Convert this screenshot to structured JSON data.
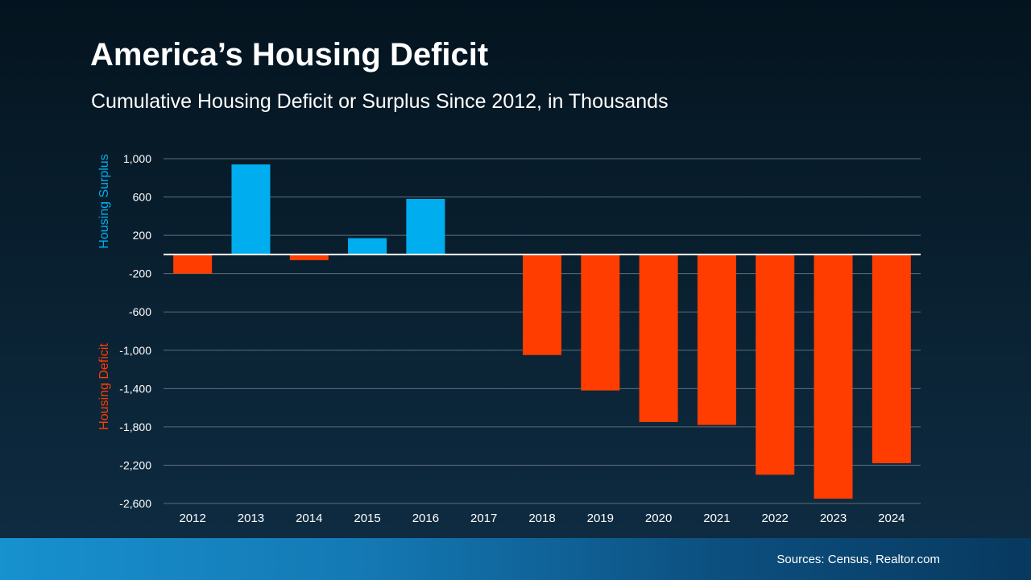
{
  "title": "America’s Housing Deficit",
  "subtitle": "Cumulative Housing Deficit or Surplus Since 2012, in Thousands",
  "source": "Sources: Census, Realtor.com",
  "colors": {
    "surplus": "#00aeef",
    "deficit": "#ff3d00",
    "grid": "#5d6e7a",
    "text": "#ffffff"
  },
  "chart_data": {
    "type": "bar",
    "categories": [
      "2012",
      "2013",
      "2014",
      "2015",
      "2016",
      "2017",
      "2018",
      "2019",
      "2020",
      "2021",
      "2022",
      "2023",
      "2024"
    ],
    "values": [
      -200,
      940,
      -60,
      170,
      580,
      0,
      -1050,
      -1420,
      -1750,
      -1780,
      -2300,
      -2550,
      -2180
    ],
    "ylim": [
      -2600,
      1000
    ],
    "yticks": [
      1000,
      600,
      200,
      -200,
      -600,
      -1000,
      -1400,
      -1800,
      -2200,
      -2600
    ],
    "ytick_labels": [
      "1,000",
      "600",
      "200",
      "-200",
      "-600",
      "-1,000",
      "-1,400",
      "-1,800",
      "-2,200",
      "-2,600"
    ],
    "ylabel_positive": "Housing Surplus",
    "ylabel_negative": "Housing Deficit",
    "grid": true
  }
}
